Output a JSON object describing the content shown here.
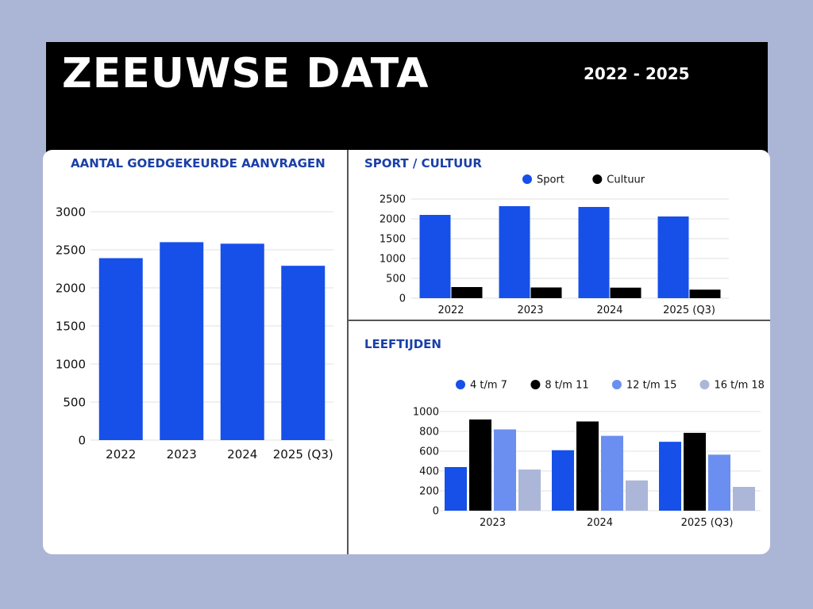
{
  "header": {
    "title": "ZEEUWSE DATA",
    "period": "2022 - 2025"
  },
  "colors": {
    "blue": "#1650e8",
    "black": "#000000",
    "mid_blue": "#6a8ff0",
    "light_blue": "#acb6d8",
    "title_blue": "#1a3fa8"
  },
  "chart_data": [
    {
      "type": "bar",
      "title": "AANTAL GOEDGEKEURDE AANVRAGEN",
      "categories": [
        "2022",
        "2023",
        "2024",
        "2025 (Q3)"
      ],
      "values": [
        2390,
        2600,
        2580,
        2290
      ],
      "ylim": [
        0,
        3000
      ],
      "yticks": [
        0,
        500,
        1000,
        1500,
        2000,
        2500,
        3000
      ],
      "grid": true
    },
    {
      "type": "bar",
      "title": "SPORT / CULTUUR",
      "categories": [
        "2022",
        "2023",
        "2024",
        "2025 (Q3)"
      ],
      "series": [
        {
          "name": "Sport",
          "values": [
            2100,
            2320,
            2300,
            2060
          ],
          "color": "#1650e8"
        },
        {
          "name": "Cultuur",
          "values": [
            280,
            270,
            265,
            215
          ],
          "color": "#000000"
        }
      ],
      "ylim": [
        0,
        2500
      ],
      "yticks": [
        0,
        500,
        1000,
        1500,
        2000,
        2500
      ],
      "legend": "top",
      "grid": true
    },
    {
      "type": "bar",
      "title": "LEEFTIJDEN",
      "categories": [
        "2023",
        "2024",
        "2025 (Q3)"
      ],
      "series": [
        {
          "name": "4 t/m 7",
          "values": [
            440,
            610,
            695
          ],
          "color": "#1650e8"
        },
        {
          "name": "8 t/m 11",
          "values": [
            920,
            900,
            785
          ],
          "color": "#000000"
        },
        {
          "name": "12 t/m 15",
          "values": [
            820,
            755,
            565
          ],
          "color": "#6a8ff0"
        },
        {
          "name": "16 t/m 18",
          "values": [
            415,
            305,
            240
          ],
          "color": "#acb6d8"
        }
      ],
      "ylim": [
        0,
        1000
      ],
      "yticks": [
        0,
        200,
        400,
        600,
        800,
        1000
      ],
      "legend": "top",
      "grid": true
    }
  ]
}
